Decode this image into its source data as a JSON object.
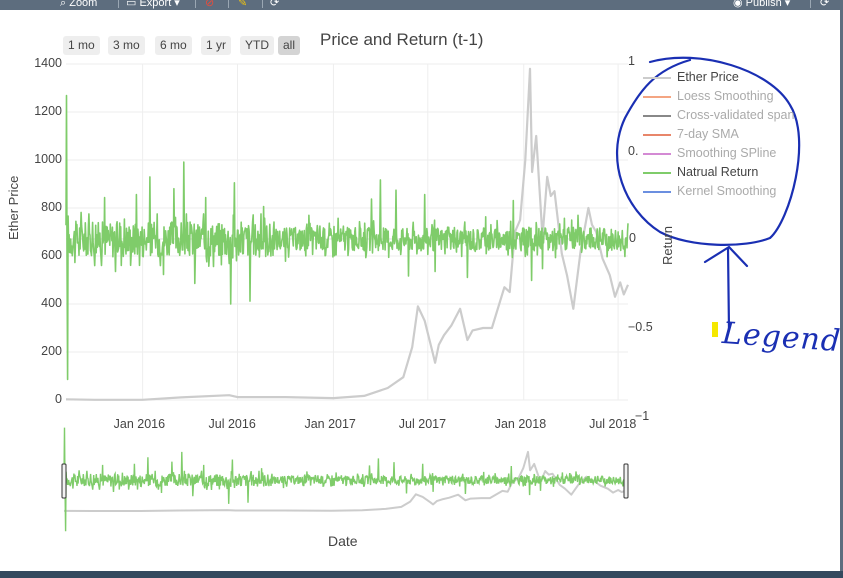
{
  "toolbar": {
    "zoom_label": "Zoom",
    "export_label": "Export",
    "publish_label": "Publish"
  },
  "range_selector": {
    "buttons": [
      {
        "label": "1 mo",
        "active": false
      },
      {
        "label": "3 mo",
        "active": false
      },
      {
        "label": "6 mo",
        "active": false
      },
      {
        "label": "1 yr",
        "active": false
      },
      {
        "label": "YTD",
        "active": false
      },
      {
        "label": "all",
        "active": true
      }
    ]
  },
  "annotation": {
    "text": "Legend",
    "color": "#1a2fb3"
  },
  "colors": {
    "price": "#cccccc",
    "return": "#7fcc6a",
    "highlight": "#f5e800"
  },
  "chart_data": {
    "type": "line",
    "title": "Price and Return (t-1)",
    "xlabel": "Date",
    "ylabel": "Ether Price",
    "y2label": "Return",
    "x_range": [
      "2015-08-07",
      "2018-07-20"
    ],
    "x_ticks": [
      "Jan 2016",
      "Jul 2016",
      "Jan 2017",
      "Jul 2017",
      "Jan 2018",
      "Jul 2018"
    ],
    "ylim": [
      0,
      1400
    ],
    "y_ticks": [
      "0",
      "200",
      "400",
      "600",
      "800",
      "1000",
      "1200",
      "1400"
    ],
    "y2lim": [
      -1,
      1
    ],
    "y2_ticks": [
      "−1",
      "−0.5",
      "0",
      "0.",
      "1"
    ],
    "grid": true,
    "legend_position": "right",
    "series": [
      {
        "name": "Ether Price",
        "axis": "y",
        "color": "#cccccc",
        "visible": true,
        "points": [
          [
            "2015-08-07",
            3
          ],
          [
            "2015-10-01",
            1
          ],
          [
            "2016-01-01",
            1
          ],
          [
            "2016-03-15",
            11
          ],
          [
            "2016-06-15",
            20
          ],
          [
            "2016-07-01",
            12
          ],
          [
            "2016-10-01",
            12
          ],
          [
            "2017-01-01",
            8
          ],
          [
            "2017-03-01",
            17
          ],
          [
            "2017-04-15",
            50
          ],
          [
            "2017-05-15",
            95
          ],
          [
            "2017-06-01",
            220
          ],
          [
            "2017-06-12",
            390
          ],
          [
            "2017-06-25",
            330
          ],
          [
            "2017-07-10",
            200
          ],
          [
            "2017-07-15",
            155
          ],
          [
            "2017-07-22",
            230
          ],
          [
            "2017-08-01",
            270
          ],
          [
            "2017-08-15",
            310
          ],
          [
            "2017-09-01",
            380
          ],
          [
            "2017-09-15",
            250
          ],
          [
            "2017-09-25",
            290
          ],
          [
            "2017-10-15",
            300
          ],
          [
            "2017-11-01",
            300
          ],
          [
            "2017-11-25",
            470
          ],
          [
            "2017-12-05",
            450
          ],
          [
            "2017-12-15",
            700
          ],
          [
            "2017-12-25",
            750
          ],
          [
            "2018-01-04",
            1000
          ],
          [
            "2018-01-10",
            1250
          ],
          [
            "2018-01-13",
            1380
          ],
          [
            "2018-01-17",
            950
          ],
          [
            "2018-01-25",
            1100
          ],
          [
            "2018-02-06",
            680
          ],
          [
            "2018-02-15",
            930
          ],
          [
            "2018-02-22",
            850
          ],
          [
            "2018-03-01",
            870
          ],
          [
            "2018-03-15",
            610
          ],
          [
            "2018-03-25",
            520
          ],
          [
            "2018-04-06",
            380
          ],
          [
            "2018-04-20",
            620
          ],
          [
            "2018-05-05",
            800
          ],
          [
            "2018-05-12",
            730
          ],
          [
            "2018-05-20",
            700
          ],
          [
            "2018-06-01",
            590
          ],
          [
            "2018-06-15",
            520
          ],
          [
            "2018-06-25",
            430
          ],
          [
            "2018-07-05",
            490
          ],
          [
            "2018-07-12",
            440
          ],
          [
            "2018-07-20",
            480
          ]
        ]
      },
      {
        "name": "Loess Smoothing",
        "color": "#f4a582",
        "visible": false
      },
      {
        "name": "Cross-validated span",
        "color": "#888888",
        "visible": false
      },
      {
        "name": "7-day SMA",
        "color": "#e8866a",
        "visible": false
      },
      {
        "name": "Smoothing SPline",
        "color": "#d48ad4",
        "visible": false
      },
      {
        "name": "Natrual Return",
        "axis": "y2",
        "color": "#7fcc6a",
        "visible": true,
        "note_band": [
          -0.19,
          0.17
        ],
        "spikes": [
          [
            "2015-08-08",
            0.97
          ],
          [
            "2015-08-10",
            -0.95
          ],
          [
            "2015-09-05",
            0.18
          ],
          [
            "2015-10-01",
            -0.18
          ],
          [
            "2015-10-20",
            0.28
          ],
          [
            "2015-11-10",
            -0.22
          ],
          [
            "2015-12-20",
            0.3
          ],
          [
            "2016-01-15",
            0.42
          ],
          [
            "2016-02-10",
            -0.24
          ],
          [
            "2016-03-01",
            0.34
          ],
          [
            "2016-03-20",
            0.52
          ],
          [
            "2016-04-10",
            -0.3
          ],
          [
            "2016-05-01",
            0.28
          ],
          [
            "2016-06-18",
            -0.44
          ],
          [
            "2016-06-25",
            0.38
          ],
          [
            "2016-07-25",
            -0.42
          ],
          [
            "2016-08-20",
            0.22
          ],
          [
            "2016-10-01",
            -0.15
          ],
          [
            "2016-11-15",
            0.16
          ],
          [
            "2017-01-10",
            0.14
          ],
          [
            "2017-03-15",
            0.27
          ],
          [
            "2017-04-01",
            0.4
          ],
          [
            "2017-05-01",
            0.33
          ],
          [
            "2017-05-25",
            -0.25
          ],
          [
            "2017-06-25",
            0.3
          ],
          [
            "2017-07-15",
            -0.22
          ],
          [
            "2017-09-15",
            -0.26
          ],
          [
            "2017-10-20",
            0.15
          ],
          [
            "2017-12-12",
            0.26
          ],
          [
            "2018-01-16",
            -0.28
          ],
          [
            "2018-02-06",
            -0.2
          ],
          [
            "2018-03-20",
            0.14
          ],
          [
            "2018-04-15",
            0.16
          ],
          [
            "2018-06-10",
            -0.12
          ]
        ]
      },
      {
        "name": "Kernel Smoothing",
        "color": "#6b8fe0",
        "visible": false
      }
    ]
  }
}
